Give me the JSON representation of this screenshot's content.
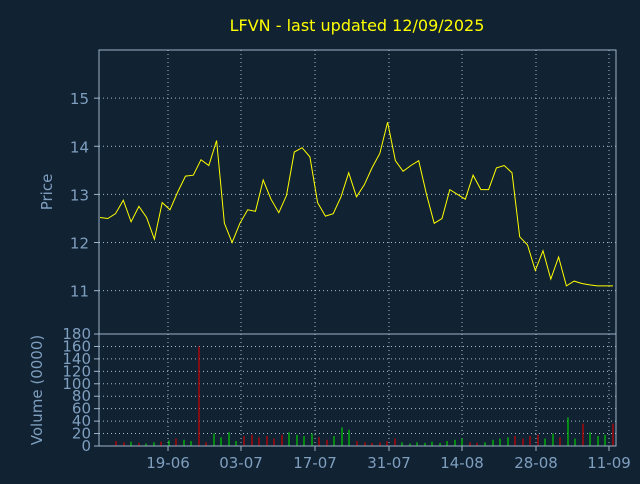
{
  "title": "LFVN - last updated 12/09/2025",
  "colors": {
    "background": "#112233",
    "title": "#ffff00",
    "axis_text": "#7f9fbf",
    "frame": "#9fb4c8",
    "grid": "#a8bccc",
    "price_line": "#ffff00",
    "volume_up": "#00cc00",
    "volume_down": "#cc0000"
  },
  "chart_data": [
    {
      "type": "line",
      "name": "price",
      "ylabel": "Price",
      "ylim": [
        10.1,
        16.0
      ],
      "yticks": [
        11,
        12,
        13,
        14,
        15
      ],
      "grid": true,
      "x": [
        "2025-06-09",
        "2025-06-10",
        "2025-06-11",
        "2025-06-12",
        "2025-06-13",
        "2025-06-16",
        "2025-06-17",
        "2025-06-18",
        "2025-06-20",
        "2025-06-23",
        "2025-06-24",
        "2025-06-25",
        "2025-06-26",
        "2025-06-27",
        "2025-06-30",
        "2025-07-01",
        "2025-07-02",
        "2025-07-03",
        "2025-07-07",
        "2025-07-08",
        "2025-07-09",
        "2025-07-10",
        "2025-07-11",
        "2025-07-14",
        "2025-07-15",
        "2025-07-16",
        "2025-07-17",
        "2025-07-18",
        "2025-07-21",
        "2025-07-22",
        "2025-07-23",
        "2025-07-24",
        "2025-07-25",
        "2025-07-28",
        "2025-07-29",
        "2025-07-30",
        "2025-07-31",
        "2025-08-01",
        "2025-08-04",
        "2025-08-05",
        "2025-08-06",
        "2025-08-07",
        "2025-08-08",
        "2025-08-11",
        "2025-08-12",
        "2025-08-13",
        "2025-08-14",
        "2025-08-15",
        "2025-08-18",
        "2025-08-19",
        "2025-08-20",
        "2025-08-21",
        "2025-08-22",
        "2025-08-25",
        "2025-08-26",
        "2025-08-27",
        "2025-08-28",
        "2025-08-29",
        "2025-09-02",
        "2025-09-03",
        "2025-09-04",
        "2025-09-05",
        "2025-09-08",
        "2025-09-09",
        "2025-09-10",
        "2025-09-11",
        "2025-09-12"
      ],
      "series": [
        {
          "values": [
            12.52,
            12.5,
            12.6,
            12.88,
            12.43,
            12.75,
            12.52,
            12.07,
            12.83,
            12.68,
            13.05,
            13.38,
            13.4,
            13.72,
            13.6,
            14.12,
            12.4,
            12.0,
            12.4,
            12.68,
            12.65,
            13.3,
            12.9,
            12.62,
            12.98,
            13.88,
            13.97,
            13.78,
            12.83,
            12.55,
            12.6,
            12.95,
            13.45,
            12.95,
            13.2,
            13.55,
            13.85,
            14.5,
            13.7,
            13.48,
            13.6,
            13.7,
            13.0,
            12.4,
            12.5,
            13.1,
            13.0,
            12.9,
            13.4,
            13.1,
            13.1,
            13.55,
            13.6,
            13.45,
            12.12,
            11.95,
            11.42,
            11.83,
            11.24,
            11.7,
            11.1,
            11.2,
            11.15,
            11.12,
            11.1,
            11.1,
            11.1
          ]
        }
      ]
    },
    {
      "type": "bar",
      "name": "volume",
      "ylabel": "Volume (0000)",
      "ylim": [
        0,
        180
      ],
      "yticks": [
        0,
        20,
        40,
        60,
        80,
        100,
        120,
        140,
        160,
        180
      ],
      "xticks": [
        "19-06",
        "03-07",
        "17-07",
        "31-07",
        "14-08",
        "28-08",
        "11-09"
      ],
      "grid": true,
      "bars": [
        {
          "v": 8,
          "d": "down"
        },
        {
          "v": 6,
          "d": "down"
        },
        {
          "v": 7,
          "d": "up"
        },
        {
          "v": 5,
          "d": "down"
        },
        {
          "v": 4,
          "d": "up"
        },
        {
          "v": 6,
          "d": "up"
        },
        {
          "v": 7,
          "d": "down"
        },
        {
          "v": 9,
          "d": "up"
        },
        {
          "v": 12,
          "d": "down"
        },
        {
          "v": 10,
          "d": "up"
        },
        {
          "v": 8,
          "d": "up"
        },
        {
          "v": 160,
          "d": "down"
        },
        {
          "v": 6,
          "d": "down"
        },
        {
          "v": 20,
          "d": "up"
        },
        {
          "v": 14,
          "d": "up"
        },
        {
          "v": 22,
          "d": "up"
        },
        {
          "v": 8,
          "d": "up"
        },
        {
          "v": 16,
          "d": "down"
        },
        {
          "v": 18,
          "d": "down"
        },
        {
          "v": 14,
          "d": "down"
        },
        {
          "v": 16,
          "d": "down"
        },
        {
          "v": 12,
          "d": "down"
        },
        {
          "v": 18,
          "d": "down"
        },
        {
          "v": 22,
          "d": "up"
        },
        {
          "v": 18,
          "d": "up"
        },
        {
          "v": 16,
          "d": "up"
        },
        {
          "v": 20,
          "d": "up"
        },
        {
          "v": 14,
          "d": "down"
        },
        {
          "v": 10,
          "d": "down"
        },
        {
          "v": 16,
          "d": "up"
        },
        {
          "v": 30,
          "d": "up"
        },
        {
          "v": 26,
          "d": "up"
        },
        {
          "v": 8,
          "d": "down"
        },
        {
          "v": 6,
          "d": "down"
        },
        {
          "v": 5,
          "d": "down"
        },
        {
          "v": 6,
          "d": "down"
        },
        {
          "v": 8,
          "d": "down"
        },
        {
          "v": 12,
          "d": "down"
        },
        {
          "v": 6,
          "d": "up"
        },
        {
          "v": 4,
          "d": "up"
        },
        {
          "v": 6,
          "d": "up"
        },
        {
          "v": 5,
          "d": "up"
        },
        {
          "v": 7,
          "d": "up"
        },
        {
          "v": 5,
          "d": "up"
        },
        {
          "v": 8,
          "d": "up"
        },
        {
          "v": 10,
          "d": "up"
        },
        {
          "v": 12,
          "d": "up"
        },
        {
          "v": 6,
          "d": "down"
        },
        {
          "v": 5,
          "d": "down"
        },
        {
          "v": 6,
          "d": "up"
        },
        {
          "v": 10,
          "d": "up"
        },
        {
          "v": 12,
          "d": "up"
        },
        {
          "v": 14,
          "d": "up"
        },
        {
          "v": 16,
          "d": "down"
        },
        {
          "v": 12,
          "d": "down"
        },
        {
          "v": 16,
          "d": "down"
        },
        {
          "v": 18,
          "d": "down"
        },
        {
          "v": 12,
          "d": "up"
        },
        {
          "v": 20,
          "d": "up"
        },
        {
          "v": 14,
          "d": "down"
        },
        {
          "v": 46,
          "d": "up"
        },
        {
          "v": 12,
          "d": "up"
        },
        {
          "v": 36,
          "d": "down"
        },
        {
          "v": 22,
          "d": "up"
        },
        {
          "v": 16,
          "d": "up"
        },
        {
          "v": 18,
          "d": "up"
        },
        {
          "v": 36,
          "d": "down"
        }
      ]
    }
  ]
}
